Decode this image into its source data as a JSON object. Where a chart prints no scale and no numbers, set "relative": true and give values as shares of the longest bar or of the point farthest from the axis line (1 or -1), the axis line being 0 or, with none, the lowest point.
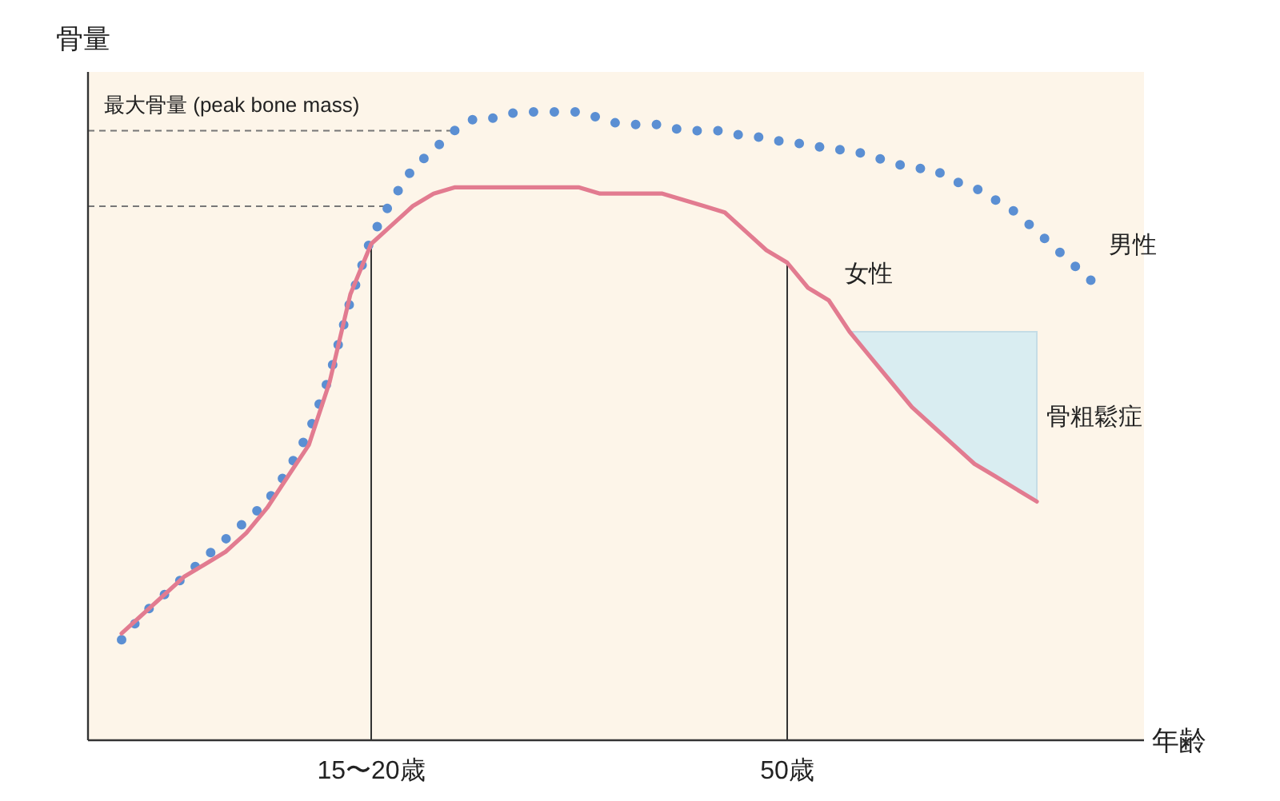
{
  "chart_data": {
    "type": "line",
    "relative": true,
    "xlabel": "年齢",
    "ylabel": "骨量",
    "categories": [
      null,
      null,
      null,
      null,
      null,
      null,
      null,
      null,
      null,
      null,
      null,
      null,
      "15〜20歳",
      null,
      null,
      null,
      null,
      null,
      null,
      null,
      null,
      null,
      null,
      null,
      null,
      null,
      null,
      null,
      null,
      null,
      null,
      null,
      "50歳",
      null,
      null,
      null,
      null,
      null,
      null,
      null,
      null,
      null,
      null,
      null,
      null,
      null,
      null,
      null
    ],
    "series": [
      {
        "name": "男性",
        "color": "#5b8fd3",
        "line_style": "dotted",
        "values": [
          0.16,
          0.2,
          0.23,
          0.26,
          0.29,
          0.32,
          0.35,
          0.38,
          0.43,
          0.49,
          0.58,
          0.7,
          0.8,
          0.86,
          0.91,
          0.94,
          0.97,
          0.99,
          0.99,
          1.0,
          1.0,
          1.0,
          1.0,
          0.99,
          0.98,
          0.98,
          0.98,
          0.97,
          0.97,
          0.97,
          0.96,
          0.96,
          0.95,
          0.95,
          0.94,
          0.94,
          0.93,
          0.92,
          0.91,
          0.91,
          0.89,
          0.88,
          0.86,
          0.84,
          0.81,
          0.78,
          0.75,
          0.72
        ]
      },
      {
        "name": "女性",
        "color": "#e27b90",
        "line_style": "solid",
        "values": [
          0.17,
          0.2,
          0.23,
          0.26,
          0.28,
          0.3,
          0.33,
          0.37,
          0.42,
          0.47,
          0.57,
          0.71,
          0.79,
          0.82,
          0.85,
          0.87,
          0.88,
          0.88,
          0.88,
          0.88,
          0.88,
          0.88,
          0.88,
          0.87,
          0.87,
          0.87,
          0.87,
          0.86,
          0.85,
          0.84,
          0.81,
          0.78,
          0.76,
          0.72,
          0.7,
          0.65,
          0.61,
          0.57,
          0.53,
          0.5,
          0.47,
          0.44,
          0.42,
          0.4,
          0.38,
          null,
          null,
          null
        ],
        "lower": [
          null,
          null,
          null,
          null,
          null,
          null,
          null,
          null,
          null,
          null,
          null,
          null,
          null,
          null,
          null,
          null,
          null,
          null,
          null,
          null,
          null,
          null,
          null,
          null,
          null,
          null,
          null,
          null,
          null,
          null,
          null,
          null,
          null,
          null,
          null,
          0.65,
          0.61,
          0.57,
          0.53,
          0.5,
          0.47,
          0.44,
          0.42,
          0.4,
          0.38,
          null,
          null,
          null
        ],
        "upper": [
          null,
          null,
          null,
          null,
          null,
          null,
          null,
          null,
          null,
          null,
          null,
          null,
          null,
          null,
          null,
          null,
          null,
          null,
          null,
          null,
          null,
          null,
          null,
          null,
          null,
          null,
          null,
          null,
          null,
          null,
          null,
          null,
          null,
          null,
          null,
          0.65,
          0.65,
          0.65,
          0.65,
          0.65,
          0.65,
          0.65,
          0.65,
          0.65,
          0.65,
          null,
          null,
          null
        ]
      }
    ],
    "ref_lines": [
      {
        "axis": "y",
        "value": 0.97,
        "label": "最大骨量 (peak bone mass)",
        "color": "#777777",
        "line_style": "dashed"
      },
      {
        "axis": "y",
        "value": 0.85,
        "color": "#777777",
        "line_style": "dashed"
      },
      {
        "axis": "x",
        "value": "15〜20歳",
        "color": "#333333",
        "line_style": "solid"
      },
      {
        "axis": "x",
        "value": "50歳",
        "color": "#333333",
        "line_style": "solid"
      }
    ],
    "annotations": [
      "骨粗鬆症"
    ]
  }
}
